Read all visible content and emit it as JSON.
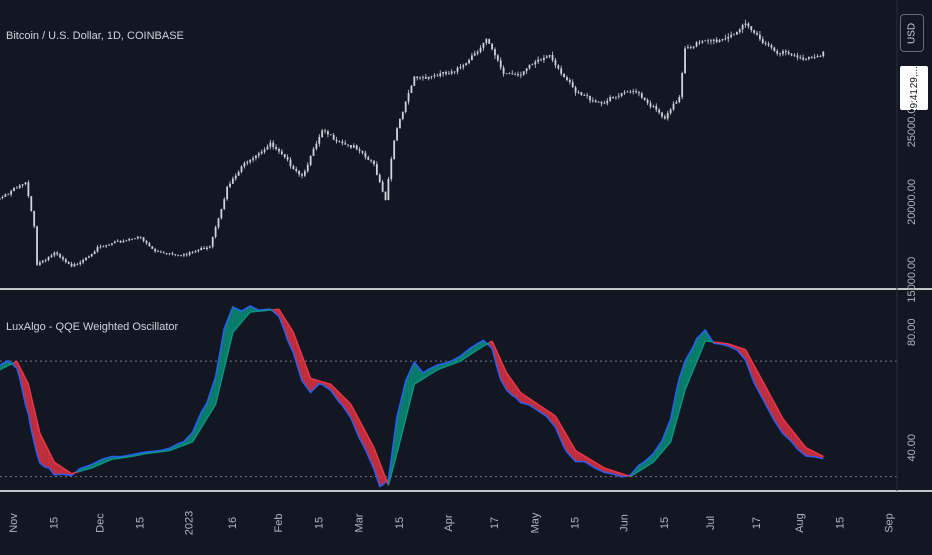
{
  "header": {
    "symbol_title": "Bitcoin / U.S. Dollar, 1D, COINBASE",
    "indicator_title": "LuxAlgo - QQE Weighted Oscillator"
  },
  "toolbar": {
    "currency_label": "USD"
  },
  "last_price_label": {
    "price": "29,...",
    "countdown": "09:29:41"
  },
  "colors": {
    "background": "#131722",
    "candle": "#d1d4dc",
    "osc_up": "#089981",
    "osc_down": "#f23645",
    "osc_fast": "#2962ff",
    "grid_dotted": "#787b86",
    "separator": "#ffffff"
  },
  "chart_data": [
    {
      "type": "candlestick",
      "title": "Bitcoin / U.S. Dollar, 1D, COINBASE",
      "y_ticks": [
        "15000.00",
        "20000.00",
        "25000.00"
      ],
      "ylim": [
        14400,
        33000
      ],
      "x_ticks": [
        "Nov",
        "15",
        "Dec",
        "15",
        "2023",
        "16",
        "Feb",
        "15",
        "Mar",
        "15",
        "Apr",
        "17",
        "May",
        "15",
        "Jun",
        "15",
        "Jul",
        "17",
        "Aug",
        "15",
        "Sep"
      ],
      "close_keypoints": [
        {
          "x": "2022-10-25",
          "y": 20100
        },
        {
          "x": "2022-11-05",
          "y": 21200
        },
        {
          "x": "2022-11-08",
          "y": 18500
        },
        {
          "x": "2022-11-09",
          "y": 16000
        },
        {
          "x": "2022-11-15",
          "y": 16700
        },
        {
          "x": "2022-11-21",
          "y": 15800
        },
        {
          "x": "2022-11-30",
          "y": 17000
        },
        {
          "x": "2022-12-14",
          "y": 17800
        },
        {
          "x": "2022-12-20",
          "y": 16800
        },
        {
          "x": "2022-12-31",
          "y": 16600
        },
        {
          "x": "2023-01-08",
          "y": 17200
        },
        {
          "x": "2023-01-14",
          "y": 20900
        },
        {
          "x": "2023-01-21",
          "y": 22700
        },
        {
          "x": "2023-01-29",
          "y": 23700
        },
        {
          "x": "2023-02-09",
          "y": 21700
        },
        {
          "x": "2023-02-16",
          "y": 24500
        },
        {
          "x": "2023-02-27",
          "y": 23500
        },
        {
          "x": "2023-03-06",
          "y": 22400
        },
        {
          "x": "2023-03-10",
          "y": 20200
        },
        {
          "x": "2023-03-13",
          "y": 24100
        },
        {
          "x": "2023-03-20",
          "y": 28000
        },
        {
          "x": "2023-04-03",
          "y": 28300
        },
        {
          "x": "2023-04-14",
          "y": 30400
        },
        {
          "x": "2023-04-20",
          "y": 28300
        },
        {
          "x": "2023-04-26",
          "y": 28300
        },
        {
          "x": "2023-05-06",
          "y": 29500
        },
        {
          "x": "2023-05-15",
          "y": 27000
        },
        {
          "x": "2023-05-24",
          "y": 26400
        },
        {
          "x": "2023-06-05",
          "y": 27200
        },
        {
          "x": "2023-06-15",
          "y": 25300
        },
        {
          "x": "2023-06-20",
          "y": 26800
        },
        {
          "x": "2023-06-22",
          "y": 30000
        },
        {
          "x": "2023-07-05",
          "y": 30500
        },
        {
          "x": "2023-07-13",
          "y": 31300
        },
        {
          "x": "2023-07-23",
          "y": 29800
        },
        {
          "x": "2023-08-01",
          "y": 29200
        },
        {
          "x": "2023-08-09",
          "y": 29600
        }
      ]
    },
    {
      "type": "area",
      "title": "LuxAlgo - QQE Weighted Oscillator",
      "y_ticks": [
        "40.00",
        "80.00"
      ],
      "ylim": [
        25,
        95
      ],
      "levels": [
        30,
        70
      ],
      "series": [
        {
          "values": [
            {
              "x": "2022-10-25",
              "y": 66
            },
            {
              "x": "2022-11-02",
              "y": 70
            },
            {
              "x": "2022-11-06",
              "y": 62
            },
            {
              "x": "2022-11-10",
              "y": 45
            },
            {
              "x": "2022-11-15",
              "y": 35
            },
            {
              "x": "2022-11-21",
              "y": 31
            },
            {
              "x": "2022-11-28",
              "y": 33
            },
            {
              "x": "2022-12-05",
              "y": 36
            },
            {
              "x": "2022-12-12",
              "y": 37
            },
            {
              "x": "2022-12-17",
              "y": 38
            },
            {
              "x": "2022-12-25",
              "y": 39
            },
            {
              "x": "2023-01-02",
              "y": 42
            },
            {
              "x": "2023-01-10",
              "y": 55
            },
            {
              "x": "2023-01-16",
              "y": 80
            },
            {
              "x": "2023-01-22",
              "y": 87
            },
            {
              "x": "2023-02-01",
              "y": 88
            },
            {
              "x": "2023-02-06",
              "y": 80
            },
            {
              "x": "2023-02-12",
              "y": 64
            },
            {
              "x": "2023-02-19",
              "y": 62
            },
            {
              "x": "2023-02-26",
              "y": 55
            },
            {
              "x": "2023-03-06",
              "y": 40
            },
            {
              "x": "2023-03-11",
              "y": 27
            },
            {
              "x": "2023-03-15",
              "y": 42
            },
            {
              "x": "2023-03-20",
              "y": 62
            },
            {
              "x": "2023-03-28",
              "y": 67
            },
            {
              "x": "2023-04-05",
              "y": 70
            },
            {
              "x": "2023-04-11",
              "y": 74
            },
            {
              "x": "2023-04-16",
              "y": 77
            },
            {
              "x": "2023-04-21",
              "y": 66
            },
            {
              "x": "2023-04-26",
              "y": 59
            },
            {
              "x": "2023-05-08",
              "y": 51
            },
            {
              "x": "2023-05-15",
              "y": 39
            },
            {
              "x": "2023-05-25",
              "y": 33
            },
            {
              "x": "2023-06-03",
              "y": 30
            },
            {
              "x": "2023-06-11",
              "y": 35
            },
            {
              "x": "2023-06-17",
              "y": 42
            },
            {
              "x": "2023-06-22",
              "y": 60
            },
            {
              "x": "2023-06-29",
              "y": 77
            },
            {
              "x": "2023-07-07",
              "y": 76
            },
            {
              "x": "2023-07-13",
              "y": 74
            },
            {
              "x": "2023-07-19",
              "y": 63
            },
            {
              "x": "2023-07-26",
              "y": 50
            },
            {
              "x": "2023-08-03",
              "y": 40
            },
            {
              "x": "2023-08-09",
              "y": 37
            }
          ]
        }
      ]
    }
  ]
}
